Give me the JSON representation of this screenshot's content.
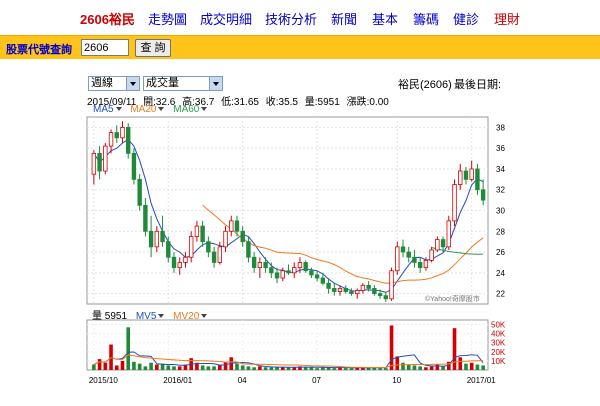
{
  "nav": {
    "home": "2606裕民",
    "items": [
      "走勢圖",
      "成交明細",
      "技術分析",
      "新聞",
      "基本",
      "籌碼",
      "健診",
      "理財"
    ]
  },
  "query": {
    "label": "股票代號查詢",
    "value": "2606",
    "button": "查 詢"
  },
  "controls": {
    "period": "週線",
    "indicator": "成交量"
  },
  "header": {
    "stock": "裕民(2606)",
    "last_date_label": "最後日期:"
  },
  "ohlc": {
    "date": "2015/09/11",
    "open": "開:32.6",
    "high": "高:36.7",
    "low": "低:31.65",
    "close": "收:35.5",
    "volume": "量:5951",
    "change": "漲跌:0.00"
  },
  "ma_legend": [
    {
      "label": "MA5",
      "color": "#1f4fbf"
    },
    {
      "label": "MA20",
      "color": "#f07a1a"
    },
    {
      "label": "MA60",
      "color": "#2e9b4e"
    }
  ],
  "vol_legend": {
    "volume_label": "量 5951",
    "mv5": {
      "label": "MV5",
      "color": "#1f4fbf"
    },
    "mv20": {
      "label": "MV20",
      "color": "#f07a1a"
    }
  },
  "watermark": "©Yahoo!奇摩股市",
  "icons": {
    "dropdown": "chevron-down-icon",
    "legend_toggle": "triangle-down-icon"
  },
  "chart_data": {
    "type": "candlestick",
    "price_ylim": [
      21,
      39
    ],
    "price_ticks": [
      "38",
      "36",
      "34",
      "32",
      "30",
      "28",
      "26",
      "24",
      "22"
    ],
    "volume_ylim": [
      0,
      55
    ],
    "volume_ticks": [
      "50K",
      "40K",
      "30K",
      "20K",
      "10K"
    ],
    "x_labels": [
      {
        "label": "2015/10",
        "i": 0
      },
      {
        "label": "2016/01",
        "i": 13
      },
      {
        "label": "04",
        "i": 26
      },
      {
        "label": "07",
        "i": 39
      },
      {
        "label": "10",
        "i": 53
      },
      {
        "label": "2017/01",
        "i": 66
      }
    ],
    "candles": [
      [
        33.5,
        35.8,
        32.5,
        35.5
      ],
      [
        35.5,
        36.2,
        33.0,
        33.8
      ],
      [
        33.8,
        36.5,
        33.5,
        36.2
      ],
      [
        36.2,
        37.8,
        35.5,
        37.5
      ],
      [
        37.5,
        38.2,
        36.5,
        37.0
      ],
      [
        37.0,
        38.6,
        36.5,
        38.0
      ],
      [
        38.0,
        38.4,
        35.0,
        35.5
      ],
      [
        35.5,
        36.0,
        32.5,
        33.0
      ],
      [
        33.0,
        33.5,
        30.0,
        30.5
      ],
      [
        30.5,
        31.2,
        27.5,
        28.0
      ],
      [
        28.0,
        29.5,
        25.5,
        26.5
      ],
      [
        26.5,
        28.5,
        26.0,
        28.0
      ],
      [
        28.0,
        29.5,
        26.5,
        27.0
      ],
      [
        27.0,
        27.5,
        25.0,
        25.5
      ],
      [
        25.5,
        26.0,
        24.0,
        24.5
      ],
      [
        24.5,
        25.5,
        23.8,
        25.0
      ],
      [
        25.0,
        26.0,
        24.5,
        25.5
      ],
      [
        25.5,
        28.0,
        25.0,
        27.5
      ],
      [
        27.5,
        29.0,
        27.0,
        28.5
      ],
      [
        28.5,
        29.0,
        26.5,
        27.0
      ],
      [
        27.0,
        27.5,
        25.5,
        26.0
      ],
      [
        26.0,
        26.5,
        24.5,
        25.0
      ],
      [
        25.0,
        27.0,
        24.8,
        26.5
      ],
      [
        26.5,
        28.5,
        26.0,
        28.0
      ],
      [
        28.0,
        29.5,
        27.5,
        29.0
      ],
      [
        29.0,
        29.5,
        27.5,
        28.0
      ],
      [
        28.0,
        28.5,
        26.5,
        27.0
      ],
      [
        27.0,
        27.5,
        25.0,
        25.5
      ],
      [
        25.5,
        26.0,
        24.0,
        24.5
      ],
      [
        24.5,
        25.5,
        23.5,
        25.0
      ],
      [
        25.0,
        25.5,
        24.0,
        24.5
      ],
      [
        24.5,
        25.0,
        23.5,
        24.0
      ],
      [
        24.0,
        24.5,
        23.0,
        23.5
      ],
      [
        23.5,
        24.5,
        23.2,
        24.2
      ],
      [
        24.2,
        24.8,
        23.8,
        24.0
      ],
      [
        24.0,
        25.0,
        23.5,
        24.5
      ],
      [
        24.5,
        25.5,
        24.0,
        25.0
      ],
      [
        25.0,
        25.2,
        24.0,
        24.2
      ],
      [
        24.2,
        24.5,
        23.5,
        23.8
      ],
      [
        23.8,
        24.2,
        23.2,
        23.5
      ],
      [
        23.5,
        24.0,
        22.8,
        23.0
      ],
      [
        23.0,
        23.5,
        22.0,
        22.5
      ],
      [
        22.5,
        23.0,
        21.8,
        22.2
      ],
      [
        22.2,
        22.8,
        21.8,
        22.5
      ],
      [
        22.5,
        22.8,
        22.0,
        22.2
      ],
      [
        22.2,
        22.5,
        21.8,
        22.0
      ],
      [
        22.0,
        22.5,
        21.5,
        22.3
      ],
      [
        22.3,
        23.0,
        22.0,
        22.8
      ],
      [
        22.8,
        23.2,
        22.2,
        22.5
      ],
      [
        22.5,
        22.8,
        21.8,
        22.0
      ],
      [
        22.0,
        22.4,
        21.5,
        21.8
      ],
      [
        21.8,
        22.2,
        21.2,
        21.5
      ],
      [
        21.5,
        24.5,
        21.3,
        24.2
      ],
      [
        24.2,
        27.0,
        23.8,
        26.5
      ],
      [
        26.5,
        27.2,
        25.5,
        26.0
      ],
      [
        26.0,
        26.5,
        25.0,
        25.5
      ],
      [
        25.5,
        26.2,
        24.5,
        25.0
      ],
      [
        25.0,
        25.5,
        24.0,
        24.5
      ],
      [
        24.5,
        25.5,
        24.2,
        25.2
      ],
      [
        25.2,
        26.5,
        25.0,
        26.2
      ],
      [
        26.2,
        27.5,
        26.0,
        27.2
      ],
      [
        27.2,
        27.5,
        26.0,
        26.5
      ],
      [
        26.5,
        29.5,
        26.2,
        29.0
      ],
      [
        29.0,
        33.0,
        28.5,
        32.5
      ],
      [
        32.5,
        34.5,
        32.0,
        33.8
      ],
      [
        33.8,
        34.2,
        32.5,
        33.0
      ],
      [
        33.0,
        34.8,
        32.8,
        34.0
      ],
      [
        34.0,
        34.5,
        31.5,
        32.0
      ],
      [
        32.0,
        33.0,
        30.5,
        31.0
      ]
    ],
    "volumes": [
      6,
      12,
      8,
      28,
      5,
      10,
      47,
      9,
      7,
      4,
      8,
      6,
      7,
      5,
      4,
      4,
      6,
      13,
      8,
      5,
      4,
      4,
      6,
      9,
      14,
      7,
      5,
      4,
      3,
      4,
      3,
      3,
      3,
      3,
      3,
      3,
      4,
      3,
      3,
      2,
      3,
      3,
      2,
      3,
      2,
      2,
      2,
      3,
      2,
      3,
      2,
      2,
      49,
      15,
      8,
      6,
      5,
      4,
      3,
      4,
      6,
      4,
      9,
      46,
      14,
      7,
      8,
      6,
      5
    ],
    "vol_colors": [
      "g",
      "r",
      "r",
      "r",
      "r",
      "r",
      "g",
      "g",
      "g",
      "g",
      "g",
      "r",
      "g",
      "g",
      "g",
      "r",
      "r",
      "r",
      "r",
      "g",
      "g",
      "g",
      "r",
      "r",
      "r",
      "g",
      "g",
      "g",
      "g",
      "r",
      "g",
      "g",
      "g",
      "r",
      "g",
      "r",
      "r",
      "g",
      "g",
      "g",
      "g",
      "g",
      "g",
      "r",
      "g",
      "g",
      "r",
      "r",
      "g",
      "g",
      "g",
      "g",
      "r",
      "r",
      "g",
      "g",
      "g",
      "g",
      "r",
      "r",
      "r",
      "g",
      "r",
      "r",
      "r",
      "g",
      "r",
      "g",
      "g"
    ]
  }
}
